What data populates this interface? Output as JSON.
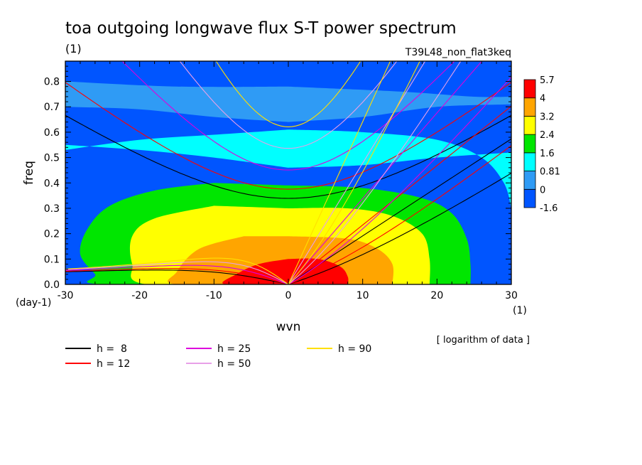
{
  "chart_data": {
    "type": "contour",
    "title": "toa outgoing longwave flux S-T power spectrum",
    "unit_label": "(1)",
    "run_name": "T39L48_non_flat3keq",
    "xlabel": "wvn",
    "ylabel": "freq",
    "x_unit": "(1)",
    "y_unit": "(day-1)",
    "xlim": [
      -30,
      30
    ],
    "ylim": [
      0,
      0.88
    ],
    "x_ticks": [
      -30,
      -20,
      -10,
      0,
      10,
      20,
      30
    ],
    "x_tick_labels": [
      "-30",
      "-20",
      "-10",
      "0",
      "10",
      "20",
      "30"
    ],
    "y_ticks": [
      0,
      0.1,
      0.2,
      0.3,
      0.4,
      0.5,
      0.6,
      0.7,
      0.8
    ],
    "y_tick_labels": [
      "0.0",
      "0.1",
      "0.2",
      "0.3",
      "0.4",
      "0.5",
      "0.6",
      "0.7",
      "0.8"
    ],
    "colorbar": {
      "levels": [
        "-1.6",
        "0",
        "0.81",
        "1.6",
        "2.4",
        "3.2",
        "4",
        "5.7"
      ],
      "colors": [
        "#0055ff",
        "#2f9bf5",
        "#00ffff",
        "#00e600",
        "#ffff00",
        "#ffa500",
        "#ff0000"
      ]
    },
    "note": "[ logarithm of data ]",
    "contour_levels": [
      {
        "level": "0.81",
        "color": "#2f9bf5",
        "east_right": [
          [
            0,
            0.78
          ],
          [
            15,
            0.76
          ],
          [
            25,
            0.74
          ],
          [
            30,
            0.74
          ]
        ],
        "east_left": [
          [
            0,
            0.64
          ],
          [
            10,
            0.66
          ],
          [
            20,
            0.7
          ],
          [
            30,
            0.71
          ]
        ],
        "west_left": [
          [
            0,
            0.64
          ],
          [
            -10,
            0.66
          ],
          [
            -20,
            0.69
          ],
          [
            -30,
            0.7
          ]
        ],
        "west_right": [
          [
            0,
            0.78
          ],
          [
            -15,
            0.78
          ],
          [
            -30,
            0.8
          ]
        ]
      },
      {
        "level": "1.6",
        "color": "#00ffff",
        "east_right": [
          [
            0,
            0.61
          ],
          [
            10,
            0.6
          ],
          [
            20,
            0.57
          ],
          [
            26,
            0.5
          ],
          [
            29,
            0.4
          ],
          [
            30,
            0.3
          ]
        ],
        "east_left": [
          [
            0,
            0.46
          ],
          [
            10,
            0.47
          ],
          [
            20,
            0.5
          ],
          [
            30,
            0.52
          ]
        ],
        "west_left": [
          [
            0,
            0.46
          ],
          [
            -10,
            0.5
          ],
          [
            -20,
            0.53
          ],
          [
            -30,
            0.55
          ]
        ],
        "west_right": [
          [
            0,
            0.61
          ],
          [
            -10,
            0.59
          ],
          [
            -20,
            0.57
          ],
          [
            -30,
            0.53
          ]
        ]
      },
      {
        "level": "2.4",
        "color": "#00e600",
        "east_right": [
          [
            0,
            0.39
          ],
          [
            10,
            0.38
          ],
          [
            18,
            0.34
          ],
          [
            22,
            0.28
          ],
          [
            24,
            0.18
          ],
          [
            24.5,
            0.08
          ],
          [
            24.5,
            0
          ]
        ],
        "east_left": [
          [
            0,
            0
          ],
          [
            30,
            0
          ]
        ],
        "west_left": [
          [
            0,
            0
          ],
          [
            -25,
            0
          ],
          [
            -26,
            0.04
          ],
          [
            -28,
            0.12
          ],
          [
            -27,
            0.22
          ],
          [
            -24,
            0.31
          ],
          [
            -18,
            0.37
          ],
          [
            -10,
            0.4
          ]
        ],
        "west_right": [
          [
            0,
            0.39
          ],
          [
            -10,
            0.4
          ]
        ]
      },
      {
        "level": "3.2",
        "color": "#ffff00",
        "east_right": [
          [
            0,
            0.3
          ],
          [
            8,
            0.3
          ],
          [
            14,
            0.27
          ],
          [
            18,
            0.2
          ],
          [
            19,
            0.1
          ],
          [
            19,
            0
          ]
        ],
        "east_left": [
          [
            0,
            0
          ],
          [
            30,
            0
          ]
        ],
        "west_left": [
          [
            0,
            0
          ],
          [
            -19,
            0
          ],
          [
            -21,
            0.08
          ],
          [
            -21,
            0.19
          ],
          [
            -18,
            0.26
          ],
          [
            -10,
            0.31
          ]
        ],
        "west_right": [
          [
            0,
            0.3
          ],
          [
            -10,
            0.31
          ]
        ]
      },
      {
        "level": "4",
        "color": "#ffa500",
        "east_right": [
          [
            0,
            0.19
          ],
          [
            8,
            0.18
          ],
          [
            12,
            0.14
          ],
          [
            14,
            0.08
          ],
          [
            14,
            0
          ]
        ],
        "east_left": [
          [
            0,
            0
          ],
          [
            30,
            0
          ]
        ],
        "west_left": [
          [
            0,
            0
          ],
          [
            -15,
            0
          ],
          [
            -15,
            0.05
          ],
          [
            -12,
            0.14
          ],
          [
            -6,
            0.19
          ]
        ],
        "west_right": [
          [
            0,
            0.19
          ],
          [
            -6,
            0.19
          ]
        ]
      },
      {
        "level": "5.7",
        "color": "#ff0000",
        "east_right": [
          [
            0,
            0.1
          ],
          [
            4,
            0.1
          ],
          [
            7,
            0.07
          ],
          [
            8,
            0.03
          ],
          [
            8,
            0
          ]
        ],
        "east_left": [
          [
            0,
            0
          ],
          [
            30,
            0
          ]
        ],
        "west_left": [
          [
            0,
            0
          ],
          [
            -8.5,
            0
          ],
          [
            -7,
            0.04
          ],
          [
            -4,
            0.08
          ],
          [
            0,
            0.1
          ]
        ],
        "west_right": [
          [
            0,
            0.1
          ]
        ]
      }
    ],
    "dispersion_curves": [
      {
        "name": "h =  8",
        "h": 8,
        "color": "#000000"
      },
      {
        "name": "h = 12",
        "h": 12,
        "color": "#ff0000"
      },
      {
        "name": "h = 25",
        "h": 25,
        "color": "#dd00dd"
      },
      {
        "name": "h = 50",
        "h": 50,
        "color": "#e8a0e8"
      },
      {
        "name": "h = 90",
        "h": 90,
        "color": "#ffe000"
      }
    ]
  }
}
